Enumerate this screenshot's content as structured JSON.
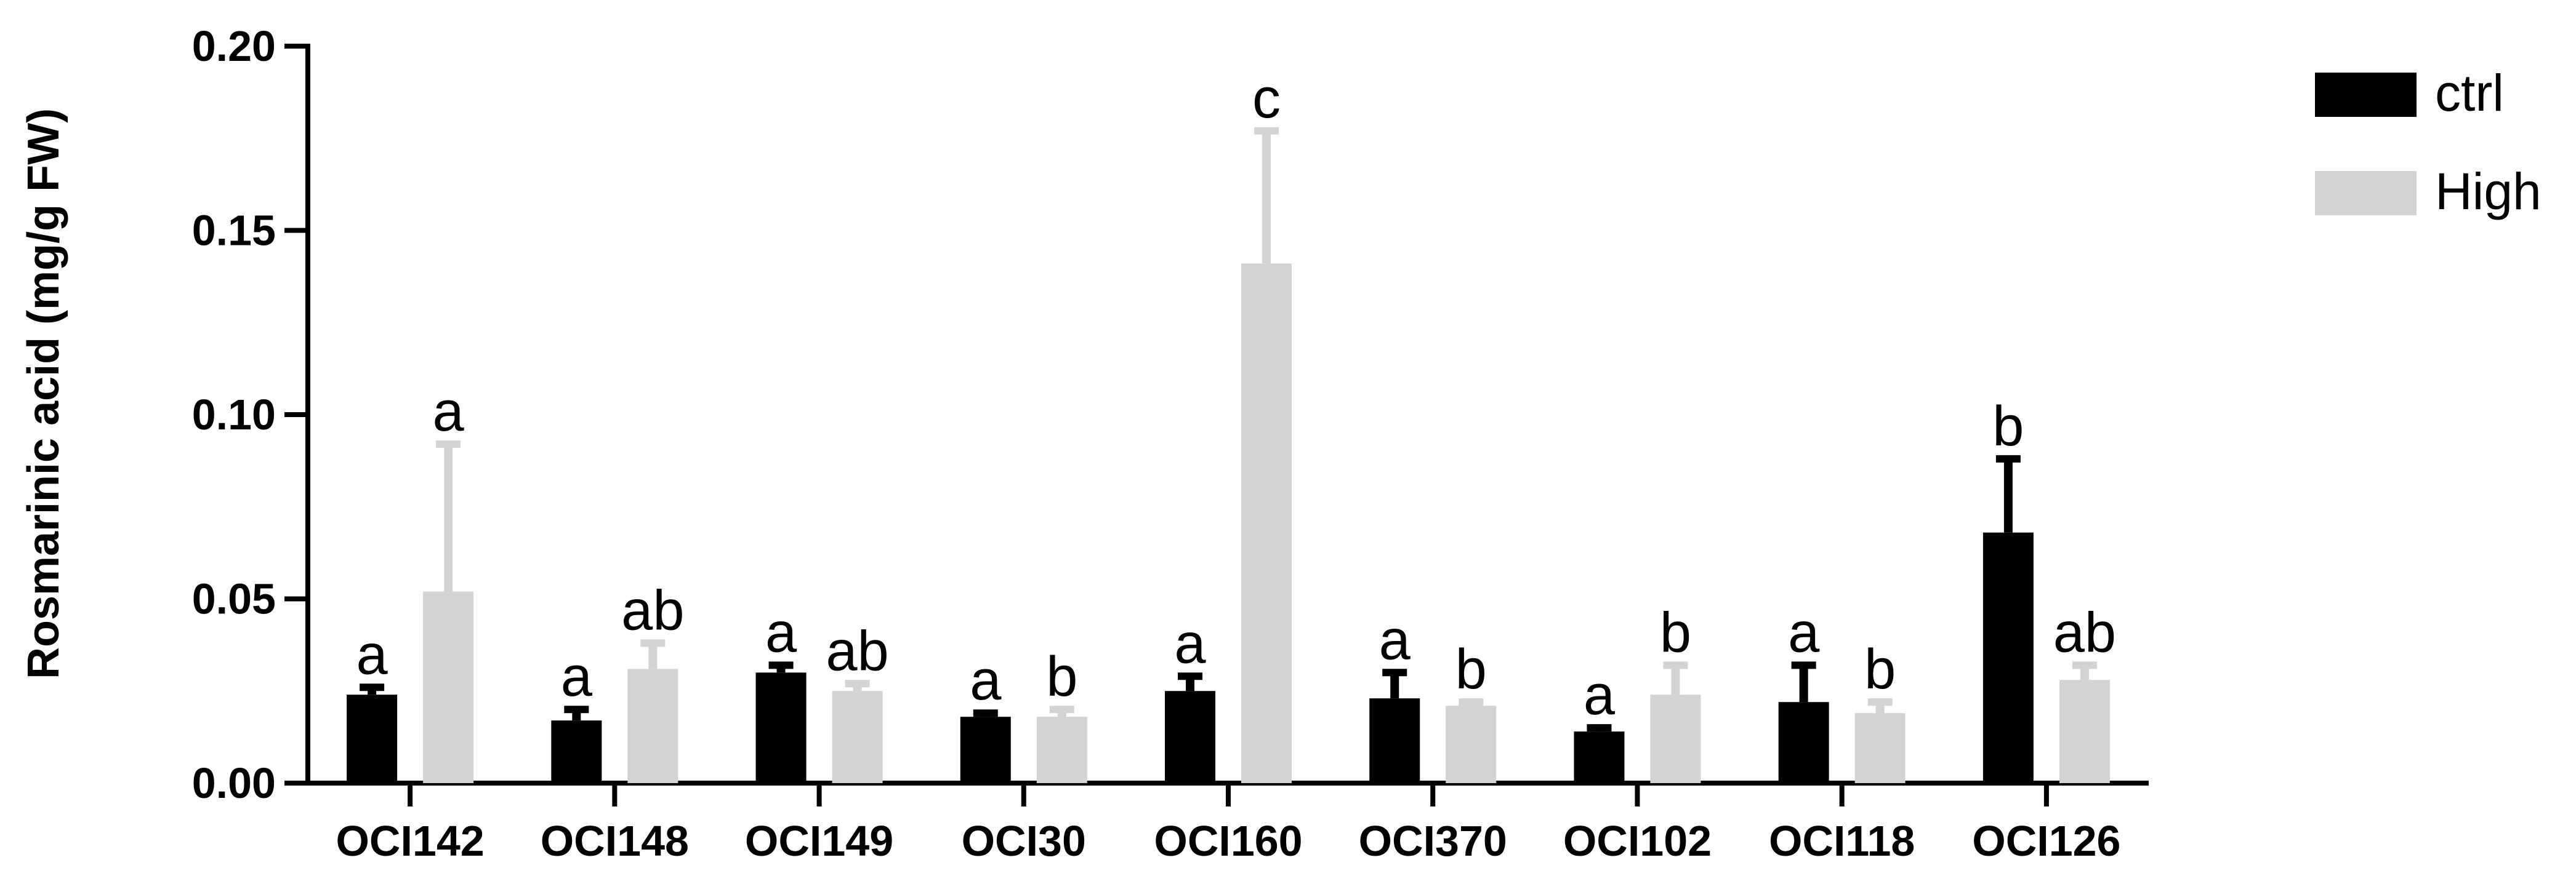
{
  "chart_data": {
    "type": "bar",
    "title": "",
    "xlabel": "",
    "ylabel": "Rosmarinic acid (mg/g FW)",
    "ylim": [
      0,
      0.2
    ],
    "yticks": [
      "0.00",
      "0.05",
      "0.10",
      "0.15",
      "0.20"
    ],
    "yticks_values": [
      0,
      0.05,
      0.1,
      0.15,
      0.2
    ],
    "categories": [
      "OCI142",
      "OCI148",
      "OCI149",
      "OCI30",
      "OCI160",
      "OCI370",
      "OCI102",
      "OCI118",
      "OCI126"
    ],
    "series": [
      {
        "name": "ctrl",
        "color": "#000000",
        "values": [
          0.024,
          0.017,
          0.03,
          0.018,
          0.025,
          0.023,
          0.014,
          0.022,
          0.068
        ],
        "errors": [
          0.002,
          0.003,
          0.002,
          0.001,
          0.004,
          0.007,
          0.001,
          0.01,
          0.02
        ],
        "labels": [
          "a",
          "a",
          "a",
          "a",
          "a",
          "a",
          "a",
          "a",
          "b"
        ]
      },
      {
        "name": "High",
        "color": "#d3d3d3",
        "values": [
          0.052,
          0.031,
          0.025,
          0.018,
          0.141,
          0.021,
          0.024,
          0.019,
          0.028
        ],
        "errors": [
          0.04,
          0.007,
          0.002,
          0.002,
          0.036,
          0.001,
          0.008,
          0.003,
          0.004
        ],
        "labels": [
          "a",
          "ab",
          "ab",
          "b",
          "c",
          "b",
          "b",
          "b",
          "ab"
        ]
      }
    ],
    "legend_position": "top-right",
    "grid": false
  }
}
